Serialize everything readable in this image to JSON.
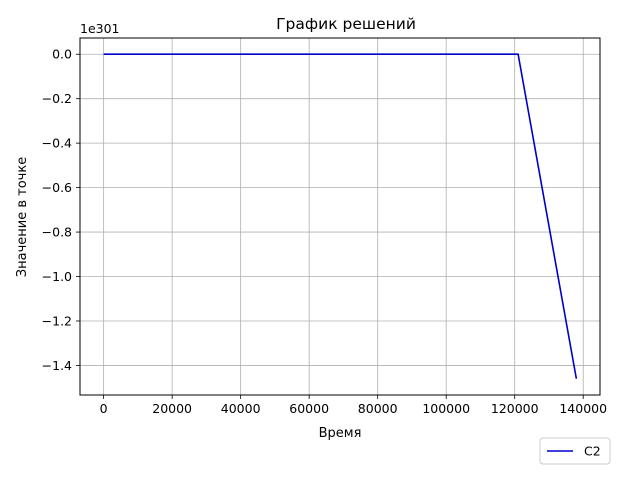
{
  "chart_data": {
    "type": "line",
    "title": "График решений",
    "xlabel": "Время",
    "ylabel": "Значение в точке",
    "y_offset_text": "1e301",
    "xlim": [
      -6900,
      144900
    ],
    "ylim": [
      -1.533,
      0.073
    ],
    "x_ticks": [
      0,
      20000,
      40000,
      60000,
      80000,
      100000,
      120000,
      140000
    ],
    "x_tick_labels": [
      "0",
      "20000",
      "40000",
      "60000",
      "80000",
      "100000",
      "120000",
      "140000"
    ],
    "y_ticks": [
      0.0,
      -0.2,
      -0.4,
      -0.6,
      -0.8,
      -1.0,
      -1.2,
      -1.4
    ],
    "y_tick_labels": [
      "0.0",
      "−0.2",
      "−0.4",
      "−0.6",
      "−0.8",
      "−1.0",
      "−1.2",
      "−1.4"
    ],
    "grid": true,
    "legend_position": "bottom-right, outside plot",
    "series": [
      {
        "name": "C2",
        "color": "#0000cc",
        "x": [
          0,
          121000,
          138000
        ],
        "y": [
          0.0,
          0.0,
          -1.46
        ]
      }
    ]
  }
}
